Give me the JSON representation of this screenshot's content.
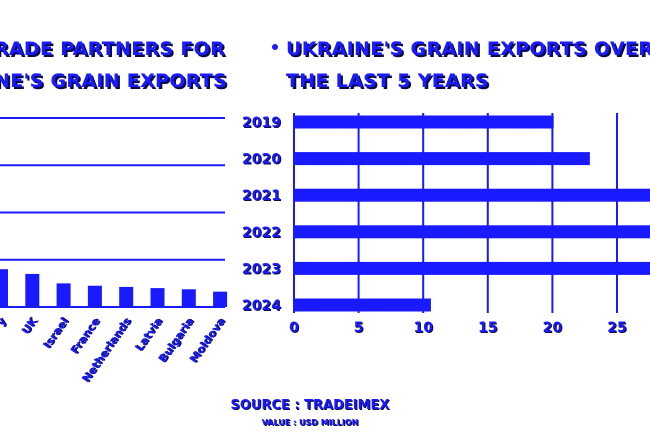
{
  "colors": {
    "accent": "#1a1aff",
    "shadow": "#0b0b4a"
  },
  "left_title_line1": "RADE PARTNERS FOR",
  "left_title_line2": "NE'S GRAIN EXPORTS",
  "right_title_line1": "UKRAINE'S GRAIN EXPORTS OVER",
  "right_title_line2": "THE LAST 5 YEARS",
  "source": "SOURCE : TRADEIMEX",
  "unit_note": "VALUE : USD MILLION",
  "chart_data": [
    {
      "type": "bar",
      "orientation": "vertical",
      "title": "TRADE PARTNERS FOR UKRAINE'S GRAIN EXPORTS",
      "categories": [
        "y",
        "UK",
        "Israel",
        "France",
        "Netherlands",
        "Latvia",
        "Bulgaria",
        "Moldova"
      ],
      "values": [
        1.6,
        1.4,
        1.0,
        0.9,
        0.85,
        0.8,
        0.75,
        0.65
      ],
      "ylim": [
        0,
        8
      ],
      "grid": true
    },
    {
      "type": "bar",
      "orientation": "horizontal",
      "title": "UKRAINE'S GRAIN EXPORTS OVER THE LAST 5 YEARS",
      "categories": [
        "2019",
        "2020",
        "2021",
        "2022",
        "2023",
        "2024"
      ],
      "values": [
        20.1,
        22.9,
        28,
        28,
        28,
        10.6
      ],
      "xticks": [
        "0",
        "5",
        "10",
        "15",
        "20",
        "25"
      ],
      "xlim": [
        0,
        27
      ],
      "grid": true
    }
  ]
}
